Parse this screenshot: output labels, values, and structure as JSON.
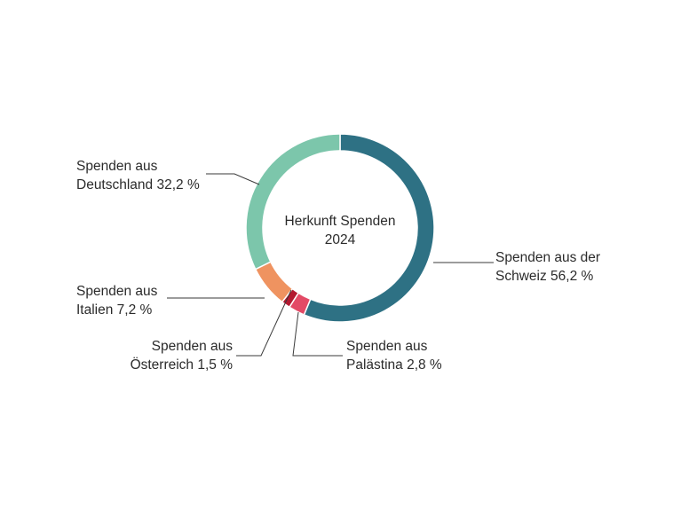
{
  "chart_data": {
    "type": "pie",
    "donut": true,
    "center_label": [
      "Herkunft Spenden",
      "2024"
    ],
    "slices": [
      {
        "label_lines": [
          "Spenden aus der",
          "Schweiz 56,2 %"
        ],
        "value": 56.2,
        "color": "#2e7184"
      },
      {
        "label_lines": [
          "Spenden aus",
          "Palästina 2,8 %"
        ],
        "value": 2.8,
        "color": "#e34a66"
      },
      {
        "label_lines": [
          "Spenden aus",
          "Österreich 1,5 %"
        ],
        "value": 1.5,
        "color": "#b31930"
      },
      {
        "label_lines": [
          "Spenden aus",
          "Italien 7,2 %"
        ],
        "value": 7.2,
        "color": "#ef9360"
      },
      {
        "label_lines": [
          "Spenden aus",
          "Deutschland 32,2 %"
        ],
        "value": 32.2,
        "color": "#7cc6ab"
      }
    ]
  }
}
